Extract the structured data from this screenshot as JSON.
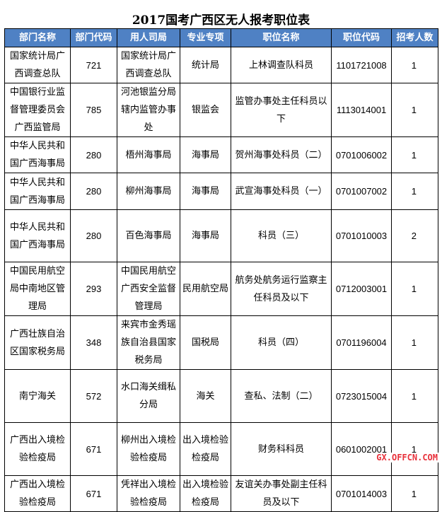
{
  "title": "2017国考广西区无人报考职位表",
  "columns": [
    "部门名称",
    "部门代码",
    "用人司局",
    "专业专项",
    "职位名称",
    "职位代码",
    "招考人数"
  ],
  "rows": [
    [
      "国家统计局广西调查总队",
      "721",
      "国家统计局广西调查总队",
      "统计局",
      "上林调查队科员",
      "1101721008",
      "1"
    ],
    [
      "中国银行业监督管理委员会广西监管局",
      "785",
      "河池银监分局辖内监管办事处",
      "银监会",
      "监管办事处主任科员以下",
      "1113014001",
      "1"
    ],
    [
      "中华人民共和国广西海事局",
      "280",
      "梧州海事局",
      "海事局",
      "贺州海事处科员（二）",
      "0701006002",
      "1"
    ],
    [
      "中华人民共和国广西海事局",
      "280",
      "柳州海事局",
      "海事局",
      "武宣海事处科员（一）",
      "0701007002",
      "1"
    ],
    [
      "中华人民共和国广西海事局",
      "280",
      "百色海事局",
      "海事局",
      "科员（三）",
      "0701010003",
      "2"
    ],
    [
      "中国民用航空局中南地区管理局",
      "293",
      "中国民用航空广西安全监督管理局",
      "民用航空局",
      "航务处航务运行监察主任科员及以下",
      "0712003001",
      "1"
    ],
    [
      "广西壮族自治区国家税务局",
      "348",
      "来宾市金秀瑶族自治县国家税务局",
      "国税局",
      "科员（四）",
      "0701196004",
      "1"
    ],
    [
      "南宁海关",
      "572",
      "水口海关缉私分局",
      "海关",
      "查私、法制（二）",
      "0723015004",
      "1"
    ],
    [
      "广西出入境检验检疫局",
      "671",
      "柳州出入境检验检疫局",
      "出入境检验检疫局",
      "财务科科员",
      "0601002001",
      "1"
    ],
    [
      "广西出入境检验检疫局",
      "671",
      "凭祥出入境检验检疫局",
      "出入境检验检疫局",
      "友谊关办事处副主任科员及以下",
      "0701014003",
      "1"
    ]
  ],
  "watermark": "GX.OFFCN.COM",
  "colors": {
    "header_bg": "#4f81c4",
    "watermark": "#e8303a"
  }
}
